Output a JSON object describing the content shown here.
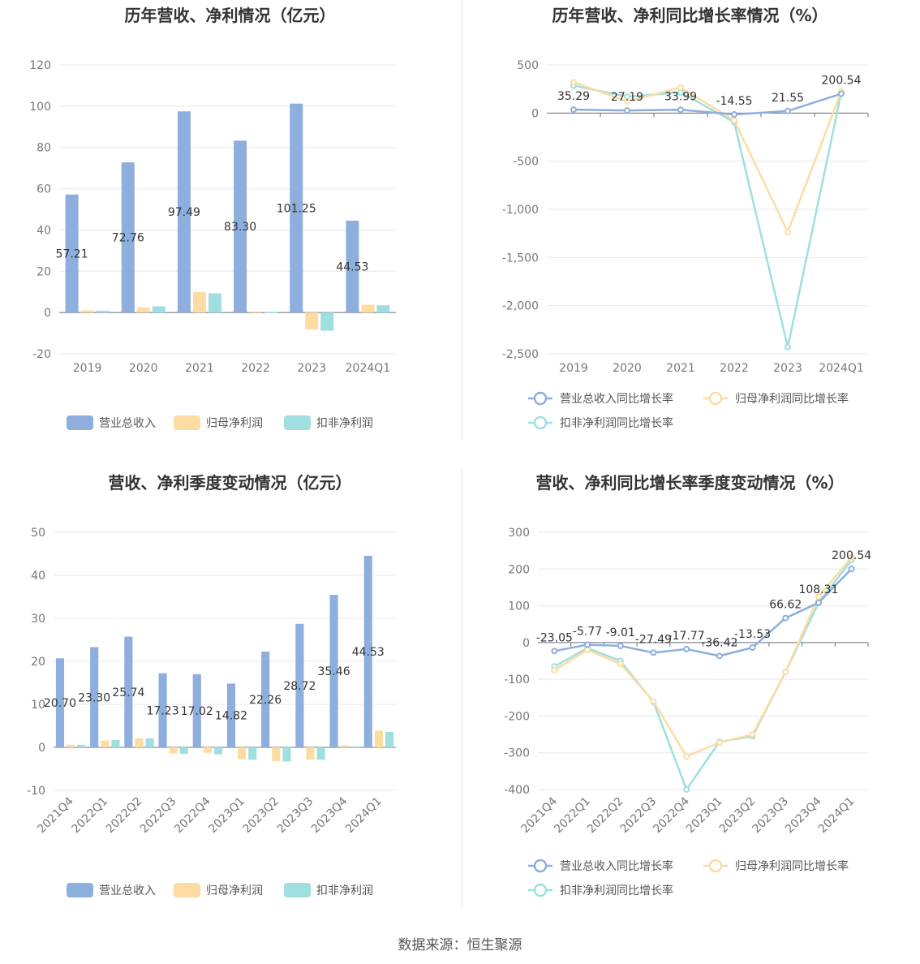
{
  "source_text": "数据来源：恒生聚源",
  "chart_data": [
    {
      "type": "bar",
      "title": "历年营收、净利情况（亿元）",
      "categories": [
        "2019",
        "2020",
        "2021",
        "2022",
        "2023",
        "2024Q1"
      ],
      "ylim": [
        -20,
        120
      ],
      "yticks": [
        -20,
        0,
        20,
        40,
        60,
        80,
        100,
        120
      ],
      "grid": true,
      "legend_position": "bottom",
      "series": [
        {
          "name": "营业总收入",
          "color": "#8eaedd",
          "values": [
            57.21,
            72.76,
            97.49,
            83.3,
            101.25,
            44.53
          ],
          "labels": [
            "57.21",
            "72.76",
            "97.49",
            "83.30",
            "101.25",
            "44.53"
          ]
        },
        {
          "name": "归母净利润",
          "color": "#fddca4",
          "values": [
            1.1,
            2.5,
            10.0,
            0.5,
            -8.2,
            3.8
          ]
        },
        {
          "name": "扣非净利润",
          "color": "#9fdfe0",
          "values": [
            0.9,
            3.0,
            9.3,
            0.3,
            -8.8,
            3.5
          ]
        }
      ]
    },
    {
      "type": "line",
      "title": "历年营收、净利同比增长率情况（%）",
      "categories": [
        "2019",
        "2020",
        "2021",
        "2022",
        "2023",
        "2024Q1"
      ],
      "ylim": [
        -2500,
        500
      ],
      "yticks": [
        500,
        0,
        -500,
        -1000,
        -1500,
        -2000,
        -2500
      ],
      "ytick_labels": [
        "500",
        "0",
        "-500",
        "-1,000",
        "-1,500",
        "-2,000",
        "-2,500"
      ],
      "grid": true,
      "legend_position": "bottom",
      "series": [
        {
          "name": "营业总收入同比增长率",
          "color": "#8eaedd",
          "values": [
            35.29,
            27.19,
            33.99,
            -14.55,
            21.55,
            200.54
          ],
          "labels": [
            "35.29",
            "27.19",
            "33.99",
            "-14.55",
            "21.55",
            "200.54"
          ]
        },
        {
          "name": "归母净利润同比增长率",
          "color": "#fddca4",
          "values": [
            320,
            120,
            265,
            -75,
            -1235,
            225
          ]
        },
        {
          "name": "扣非净利润同比增长率",
          "color": "#9fdfe0",
          "values": [
            285,
            170,
            215,
            -95,
            -2430,
            215
          ]
        }
      ]
    },
    {
      "type": "bar",
      "title": "营收、净利季度变动情况（亿元）",
      "categories": [
        "2021Q4",
        "2022Q1",
        "2022Q2",
        "2022Q3",
        "2022Q4",
        "2023Q1",
        "2023Q2",
        "2023Q3",
        "2023Q4",
        "2024Q1"
      ],
      "ylim": [
        -10,
        50
      ],
      "yticks": [
        -10,
        0,
        10,
        20,
        30,
        40,
        50
      ],
      "grid": true,
      "legend_position": "bottom",
      "series": [
        {
          "name": "营业总收入",
          "color": "#8eaedd",
          "values": [
            20.7,
            23.3,
            25.74,
            17.23,
            17.02,
            14.82,
            22.26,
            28.72,
            35.46,
            44.53
          ],
          "labels": [
            "20.70",
            "23.30",
            "25.74",
            "17.23",
            "17.02",
            "14.82",
            "22.26",
            "28.72",
            "35.46",
            "44.53"
          ]
        },
        {
          "name": "归母净利润",
          "color": "#fddca4",
          "values": [
            0.6,
            1.6,
            2.1,
            -1.4,
            -1.3,
            -2.8,
            -3.2,
            -2.9,
            0.5,
            3.9
          ]
        },
        {
          "name": "扣非净利润",
          "color": "#9fdfe0",
          "values": [
            0.6,
            1.7,
            2.1,
            -1.5,
            -1.6,
            -2.9,
            -3.3,
            -2.9,
            0.2,
            3.6
          ]
        }
      ]
    },
    {
      "type": "line",
      "title": "营收、净利同比增长率季度变动情况（%）",
      "categories": [
        "2021Q4",
        "2022Q1",
        "2022Q2",
        "2022Q3",
        "2022Q4",
        "2023Q1",
        "2023Q2",
        "2023Q3",
        "2023Q4",
        "2024Q1"
      ],
      "ylim": [
        -400,
        300
      ],
      "yticks": [
        300,
        200,
        100,
        0,
        -100,
        -200,
        -300,
        -400
      ],
      "grid": true,
      "legend_position": "bottom",
      "series": [
        {
          "name": "营业总收入同比增长率",
          "color": "#8eaedd",
          "values": [
            -23.05,
            -5.77,
            -9.01,
            -27.49,
            -17.77,
            -36.42,
            -13.53,
            66.62,
            108.31,
            200.54
          ],
          "labels": [
            "-23.05",
            "-5.77",
            "-9.01",
            "-27.49",
            "-17.77",
            "-36.42",
            "-13.53",
            "66.62",
            "108.31",
            "200.54"
          ]
        },
        {
          "name": "归母净利润同比增长率",
          "color": "#fddca4",
          "values": [
            -75,
            -20,
            -58,
            -160,
            -310,
            -272,
            -250,
            -80,
            125,
            232
          ]
        },
        {
          "name": "扣非净利润同比增长率",
          "color": "#9fdfe0",
          "values": [
            -65,
            -15,
            -50,
            -162,
            -400,
            -270,
            -255,
            -80,
            108,
            225
          ]
        }
      ]
    }
  ]
}
